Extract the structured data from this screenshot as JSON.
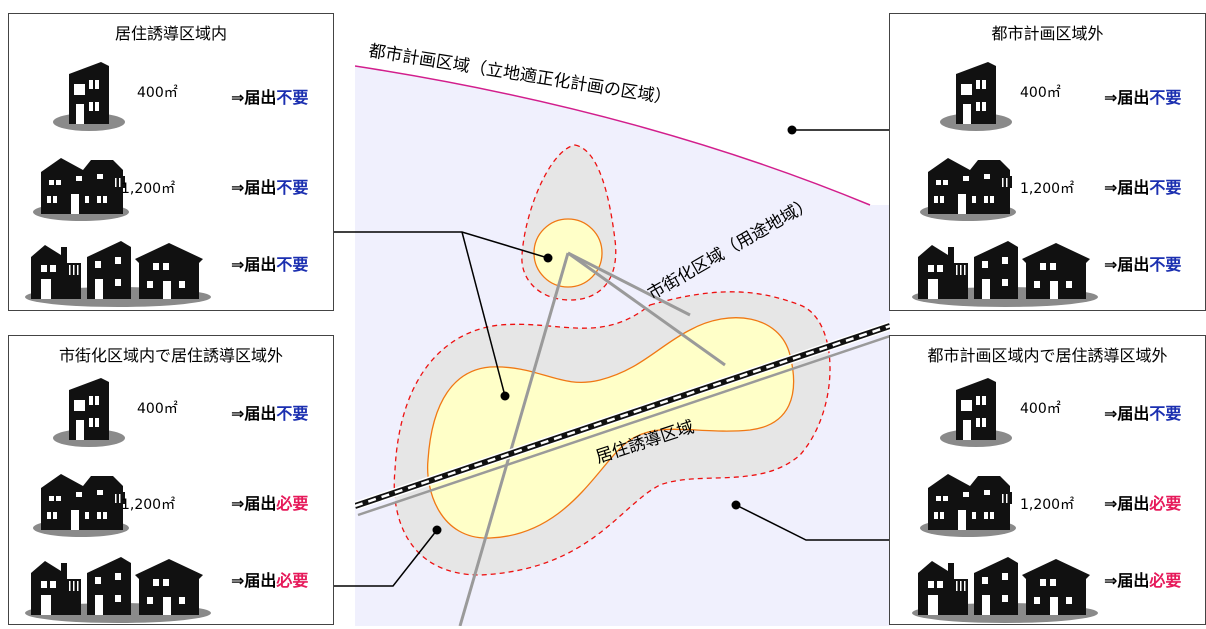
{
  "map": {
    "city_planning_area_label": "都市計画区域（立地適正化計画の区域）",
    "urbanization_area_label": "市街化区域（用途地域）",
    "residence_induction_area_label": "居住誘導区域"
  },
  "verdict_prefix": "⇒届出",
  "colors": {
    "required": "#e6195a",
    "not_required": "#1b2fb0"
  },
  "panels": [
    {
      "title": "居住誘導区域内",
      "rows": [
        {
          "building": "house-icon",
          "area": "400㎡",
          "result": "不要"
        },
        {
          "building": "duplex-icon",
          "area": "1,200㎡",
          "result": "不要"
        },
        {
          "building": "three-houses-icon",
          "area": "",
          "result": "不要"
        }
      ]
    },
    {
      "title": "市街化区域内で居住誘導区域外",
      "rows": [
        {
          "building": "house-icon",
          "area": "400㎡",
          "result": "不要"
        },
        {
          "building": "duplex-icon",
          "area": "1,200㎡",
          "result": "必要"
        },
        {
          "building": "three-houses-icon",
          "area": "",
          "result": "必要"
        }
      ]
    },
    {
      "title": "都市計画区域外",
      "rows": [
        {
          "building": "house-icon",
          "area": "400㎡",
          "result": "不要"
        },
        {
          "building": "duplex-icon",
          "area": "1,200㎡",
          "result": "不要"
        },
        {
          "building": "three-houses-icon",
          "area": "",
          "result": "不要"
        }
      ]
    },
    {
      "title": "都市計画区域内で居住誘導区域外",
      "rows": [
        {
          "building": "house-icon",
          "area": "400㎡",
          "result": "不要"
        },
        {
          "building": "duplex-icon",
          "area": "1,200㎡",
          "result": "必要"
        },
        {
          "building": "three-houses-icon",
          "area": "",
          "result": "必要"
        }
      ]
    }
  ]
}
